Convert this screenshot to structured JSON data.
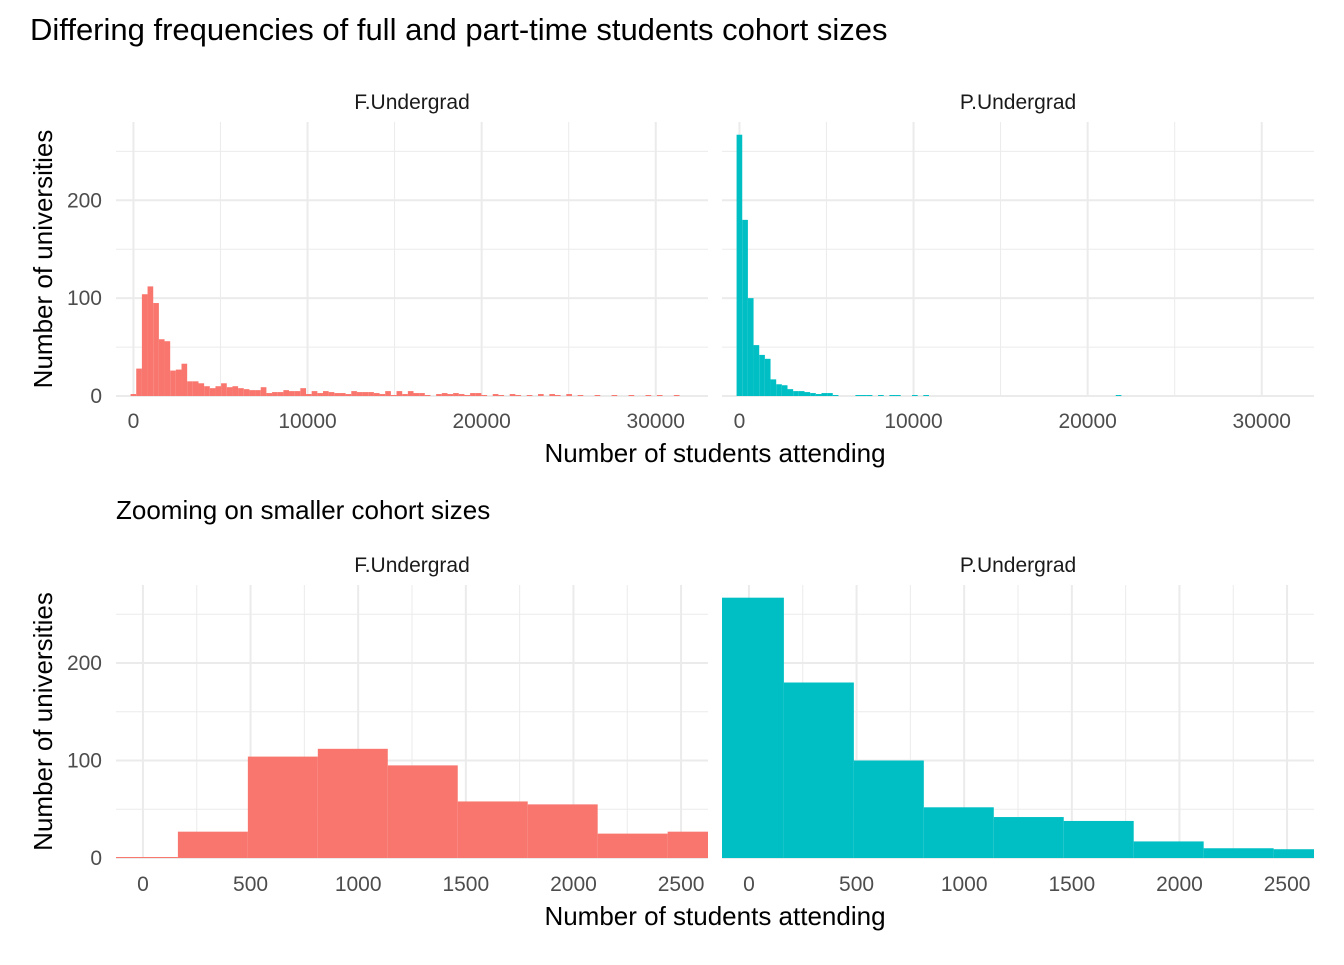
{
  "title": "Differing frequencies of full and part-time students cohort sizes",
  "subtitle": "Zooming on smaller cohort sizes",
  "colors": {
    "F.Undergrad": "#F8766D",
    "P.Undergrad": "#00BFC4",
    "grid": "#EBEBEB"
  },
  "chart_data": [
    {
      "type": "histogram",
      "xlabel": "Number of students attending",
      "ylabel": "Number of universities",
      "xlim": [
        -1000,
        33000
      ],
      "ylim": [
        0,
        280
      ],
      "xticks": [
        0,
        10000,
        20000,
        30000
      ],
      "yticks": [
        0,
        100,
        200
      ],
      "grid": true,
      "binwidth": 325,
      "panels": [
        {
          "strip": "F.Undergrad",
          "bins": [
            {
              "x": 0,
              "y": 2
            },
            {
              "x": 325,
              "y": 28
            },
            {
              "x": 650,
              "y": 104
            },
            {
              "x": 975,
              "y": 112
            },
            {
              "x": 1300,
              "y": 95
            },
            {
              "x": 1625,
              "y": 58
            },
            {
              "x": 1950,
              "y": 56
            },
            {
              "x": 2275,
              "y": 26
            },
            {
              "x": 2600,
              "y": 27
            },
            {
              "x": 2925,
              "y": 33
            },
            {
              "x": 3250,
              "y": 15
            },
            {
              "x": 3575,
              "y": 15
            },
            {
              "x": 3900,
              "y": 13
            },
            {
              "x": 4225,
              "y": 10
            },
            {
              "x": 4550,
              "y": 8
            },
            {
              "x": 4875,
              "y": 10
            },
            {
              "x": 5200,
              "y": 13
            },
            {
              "x": 5525,
              "y": 9
            },
            {
              "x": 5850,
              "y": 10
            },
            {
              "x": 6175,
              "y": 8
            },
            {
              "x": 6500,
              "y": 7
            },
            {
              "x": 6825,
              "y": 6
            },
            {
              "x": 7150,
              "y": 6
            },
            {
              "x": 7475,
              "y": 9
            },
            {
              "x": 7800,
              "y": 3
            },
            {
              "x": 8125,
              "y": 4
            },
            {
              "x": 8450,
              "y": 4
            },
            {
              "x": 8775,
              "y": 6
            },
            {
              "x": 9100,
              "y": 5
            },
            {
              "x": 9425,
              "y": 5
            },
            {
              "x": 9750,
              "y": 8
            },
            {
              "x": 10075,
              "y": 2
            },
            {
              "x": 10400,
              "y": 5
            },
            {
              "x": 10725,
              "y": 3
            },
            {
              "x": 11050,
              "y": 5
            },
            {
              "x": 11375,
              "y": 4
            },
            {
              "x": 11700,
              "y": 3
            },
            {
              "x": 12025,
              "y": 3
            },
            {
              "x": 12350,
              "y": 2
            },
            {
              "x": 12675,
              "y": 5
            },
            {
              "x": 13000,
              "y": 4
            },
            {
              "x": 13325,
              "y": 4
            },
            {
              "x": 13650,
              "y": 4
            },
            {
              "x": 13975,
              "y": 3
            },
            {
              "x": 14300,
              "y": 2
            },
            {
              "x": 14625,
              "y": 5
            },
            {
              "x": 14950,
              "y": 1
            },
            {
              "x": 15275,
              "y": 5
            },
            {
              "x": 15600,
              "y": 2
            },
            {
              "x": 15925,
              "y": 5
            },
            {
              "x": 16250,
              "y": 3
            },
            {
              "x": 16575,
              "y": 3
            },
            {
              "x": 16900,
              "y": 1
            },
            {
              "x": 17550,
              "y": 2
            },
            {
              "x": 17875,
              "y": 3
            },
            {
              "x": 18200,
              "y": 2
            },
            {
              "x": 18525,
              "y": 3
            },
            {
              "x": 18850,
              "y": 2
            },
            {
              "x": 19175,
              "y": 1
            },
            {
              "x": 19500,
              "y": 3
            },
            {
              "x": 19825,
              "y": 3
            },
            {
              "x": 20150,
              "y": 1
            },
            {
              "x": 20800,
              "y": 2
            },
            {
              "x": 21125,
              "y": 1
            },
            {
              "x": 21775,
              "y": 2
            },
            {
              "x": 22100,
              "y": 1
            },
            {
              "x": 22750,
              "y": 1
            },
            {
              "x": 23400,
              "y": 2
            },
            {
              "x": 24050,
              "y": 2
            },
            {
              "x": 24375,
              "y": 1
            },
            {
              "x": 25025,
              "y": 2
            },
            {
              "x": 25675,
              "y": 1
            },
            {
              "x": 26650,
              "y": 1
            },
            {
              "x": 27625,
              "y": 1
            },
            {
              "x": 28600,
              "y": 1
            },
            {
              "x": 29575,
              "y": 1
            },
            {
              "x": 30225,
              "y": 1
            },
            {
              "x": 31200,
              "y": 1
            }
          ]
        },
        {
          "strip": "P.Undergrad",
          "bins": [
            {
              "x": 0,
              "y": 267
            },
            {
              "x": 325,
              "y": 180
            },
            {
              "x": 650,
              "y": 100
            },
            {
              "x": 975,
              "y": 52
            },
            {
              "x": 1300,
              "y": 42
            },
            {
              "x": 1625,
              "y": 38
            },
            {
              "x": 1950,
              "y": 17
            },
            {
              "x": 2275,
              "y": 12
            },
            {
              "x": 2600,
              "y": 11
            },
            {
              "x": 2925,
              "y": 7
            },
            {
              "x": 3250,
              "y": 5
            },
            {
              "x": 3575,
              "y": 5
            },
            {
              "x": 3900,
              "y": 4
            },
            {
              "x": 4225,
              "y": 3
            },
            {
              "x": 4550,
              "y": 2
            },
            {
              "x": 4875,
              "y": 3
            },
            {
              "x": 5200,
              "y": 3
            },
            {
              "x": 5525,
              "y": 1
            },
            {
              "x": 6825,
              "y": 1
            },
            {
              "x": 7150,
              "y": 1
            },
            {
              "x": 7475,
              "y": 1
            },
            {
              "x": 8125,
              "y": 1
            },
            {
              "x": 8775,
              "y": 1
            },
            {
              "x": 9100,
              "y": 1
            },
            {
              "x": 10075,
              "y": 1
            },
            {
              "x": 10725,
              "y": 1
            },
            {
              "x": 21775,
              "y": 1
            }
          ]
        }
      ]
    },
    {
      "type": "histogram",
      "subtitle": "Zooming on smaller cohort sizes",
      "xlabel": "Number of students attending",
      "ylabel": "Number of universities",
      "xlim": [
        -125,
        2625
      ],
      "ylim": [
        0,
        280
      ],
      "xticks": [
        0,
        500,
        1000,
        1500,
        2000,
        2500
      ],
      "yticks": [
        0,
        100,
        200
      ],
      "grid": true,
      "binwidth": 325,
      "panels": [
        {
          "strip": "F.Undergrad",
          "bins": [
            {
              "x": 0,
              "y": 1
            },
            {
              "x": 325,
              "y": 27
            },
            {
              "x": 650,
              "y": 104
            },
            {
              "x": 975,
              "y": 112
            },
            {
              "x": 1300,
              "y": 95
            },
            {
              "x": 1625,
              "y": 58
            },
            {
              "x": 1950,
              "y": 55
            },
            {
              "x": 2275,
              "y": 25
            },
            {
              "x": 2600,
              "y": 27
            }
          ]
        },
        {
          "strip": "P.Undergrad",
          "bins": [
            {
              "x": 0,
              "y": 267
            },
            {
              "x": 325,
              "y": 180
            },
            {
              "x": 650,
              "y": 100
            },
            {
              "x": 975,
              "y": 52
            },
            {
              "x": 1300,
              "y": 42
            },
            {
              "x": 1625,
              "y": 38
            },
            {
              "x": 1950,
              "y": 17
            },
            {
              "x": 2275,
              "y": 10
            },
            {
              "x": 2600,
              "y": 9
            }
          ]
        }
      ]
    }
  ]
}
